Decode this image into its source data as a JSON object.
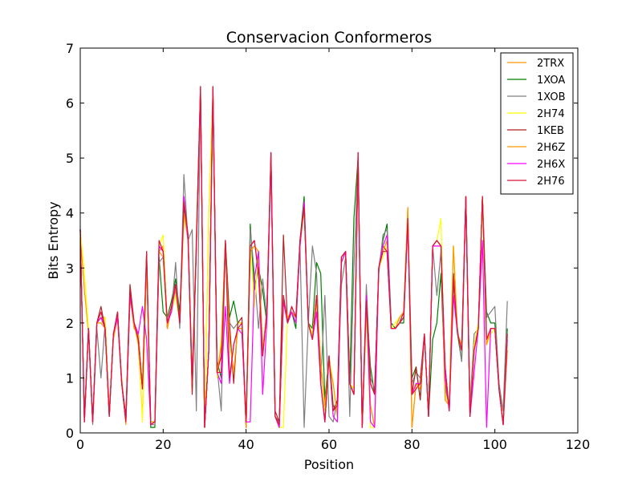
{
  "chart_data": {
    "type": "line",
    "title": "Conservacion Conformeros",
    "xlabel": "Position",
    "ylabel": "Bits Entropy",
    "xlim": [
      0,
      120
    ],
    "ylim": [
      0,
      7
    ],
    "xticks": [
      "0",
      "20",
      "40",
      "60",
      "80",
      "100",
      "120"
    ],
    "yticks": [
      "0",
      "1",
      "2",
      "3",
      "4",
      "5",
      "6",
      "7"
    ],
    "grid": false,
    "legend_position": "top-right",
    "x": [
      0,
      1,
      2,
      3,
      4,
      5,
      6,
      7,
      8,
      9,
      10,
      11,
      12,
      13,
      14,
      15,
      16,
      17,
      18,
      19,
      20,
      21,
      22,
      23,
      24,
      25,
      26,
      27,
      28,
      29,
      30,
      31,
      32,
      33,
      34,
      35,
      36,
      37,
      38,
      39,
      40,
      41,
      42,
      43,
      44,
      45,
      46,
      47,
      48,
      49,
      50,
      51,
      52,
      53,
      54,
      55,
      56,
      57,
      58,
      59,
      60,
      61,
      62,
      63,
      64,
      65,
      66,
      67,
      68,
      69,
      70,
      71,
      72,
      73,
      74,
      75,
      76,
      77,
      78,
      79,
      80,
      81,
      82,
      83,
      84,
      85,
      86,
      87,
      88,
      89,
      90,
      91,
      92,
      93,
      94,
      95,
      96,
      97,
      98,
      99,
      100,
      101,
      102,
      103
    ],
    "series": [
      {
        "name": "2TRX",
        "color": "#ff9900",
        "values": [
          3.6,
          2.6,
          1.8,
          0.2,
          2.0,
          2.1,
          2.1,
          0.4,
          1.7,
          2.1,
          1.0,
          0.15,
          2.6,
          2.0,
          1.6,
          0.3,
          3.1,
          0.2,
          0.2,
          3.3,
          3.4,
          1.9,
          2.3,
          2.6,
          2.1,
          3.9,
          3.6,
          0.9,
          3.6,
          6.2,
          0.1,
          4.0,
          6.2,
          1.1,
          1.6,
          3.4,
          1.8,
          1.1,
          1.9,
          1.9,
          0.1,
          3.3,
          3.4,
          3.3,
          1.5,
          2.2,
          5.0,
          0.3,
          0.1,
          2.4,
          2.1,
          2.2,
          2.1,
          3.4,
          4.1,
          2.0,
          1.7,
          2.5,
          1.3,
          0.5,
          1.3,
          0.9,
          0.3,
          3.1,
          3.3,
          0.9,
          0.7,
          5.0,
          0.1,
          2.3,
          0.5,
          0.1,
          3.0,
          3.3,
          3.5,
          1.9,
          1.9,
          2.1,
          2.2,
          4.1,
          0.1,
          0.9,
          0.8,
          1.8,
          0.3,
          3.4,
          3.5,
          3.4,
          0.6,
          0.5,
          3.4,
          1.8,
          1.6,
          4.3,
          0.3,
          1.5,
          1.9,
          4.3,
          1.6,
          1.9,
          1.9,
          0.8,
          0.15,
          1.5
        ]
      },
      {
        "name": "1XOA",
        "color": "#008000",
        "values": [
          3.7,
          0.3,
          1.9,
          0.2,
          2.0,
          2.1,
          1.9,
          0.3,
          1.8,
          2.1,
          0.9,
          0.3,
          2.5,
          1.9,
          1.8,
          0.8,
          3.3,
          0.1,
          0.1,
          3.2,
          2.2,
          2.1,
          2.4,
          2.8,
          2.2,
          4.1,
          3.5,
          0.8,
          3.4,
          6.1,
          0.1,
          1.5,
          6.1,
          1.3,
          1.0,
          3.5,
          2.1,
          2.4,
          2.0,
          2.0,
          0.1,
          3.8,
          2.6,
          3.0,
          2.6,
          2.0,
          5.0,
          0.3,
          0.2,
          2.5,
          2.0,
          2.2,
          1.9,
          3.5,
          4.3,
          2.0,
          1.9,
          3.1,
          2.9,
          0.6,
          1.4,
          0.5,
          0.4,
          3.2,
          3.3,
          0.9,
          3.9,
          5.0,
          0.1,
          2.4,
          1.2,
          0.7,
          3.0,
          3.5,
          3.8,
          2.0,
          1.9,
          2.0,
          2.0,
          3.9,
          1.0,
          1.2,
          0.6,
          1.8,
          0.3,
          1.7,
          2.0,
          2.9,
          0.9,
          0.5,
          2.9,
          1.8,
          1.3,
          4.3,
          0.5,
          1.5,
          1.9,
          4.3,
          2.2,
          2.0,
          2.0,
          0.9,
          0.15,
          1.9
        ]
      },
      {
        "name": "1XOB",
        "color": "#808080",
        "values": [
          3.7,
          0.2,
          1.9,
          0.15,
          1.9,
          1.0,
          2.0,
          0.3,
          1.8,
          2.1,
          0.9,
          0.2,
          2.5,
          1.9,
          1.8,
          0.8,
          3.1,
          0.15,
          0.15,
          3.1,
          3.2,
          2.0,
          2.2,
          3.1,
          1.9,
          4.7,
          3.5,
          3.7,
          0.4,
          6.2,
          0.1,
          1.5,
          6.2,
          1.2,
          0.4,
          3.4,
          2.0,
          1.9,
          2.0,
          2.0,
          0.1,
          3.7,
          2.9,
          1.9,
          2.8,
          2.1,
          5.0,
          0.3,
          0.2,
          2.4,
          2.0,
          2.2,
          2.0,
          3.4,
          0.1,
          2.0,
          3.4,
          2.9,
          0.9,
          2.5,
          0.3,
          0.2,
          0.6,
          2.7,
          3.2,
          0.3,
          3.0,
          4.9,
          0.1,
          2.7,
          1.0,
          0.8,
          2.9,
          3.6,
          3.7,
          1.9,
          1.9,
          2.0,
          2.1,
          3.8,
          0.9,
          1.1,
          1.0,
          1.8,
          0.3,
          3.4,
          2.5,
          3.3,
          0.8,
          0.5,
          2.7,
          1.9,
          1.3,
          4.3,
          0.5,
          1.8,
          1.9,
          4.3,
          2.1,
          2.2,
          2.3,
          0.9,
          0.4,
          2.4
        ]
      },
      {
        "name": "2H74",
        "color": "#ffff00",
        "values": [
          3.7,
          2.9,
          1.9,
          0.2,
          2.0,
          2.0,
          2.1,
          0.3,
          1.8,
          2.1,
          0.9,
          0.2,
          2.5,
          2.0,
          1.8,
          0.2,
          3.2,
          0.2,
          0.2,
          3.4,
          3.6,
          2.0,
          2.2,
          2.5,
          2.0,
          3.9,
          3.6,
          1.1,
          3.4,
          6.2,
          0.1,
          4.0,
          6.1,
          1.0,
          1.7,
          3.5,
          1.7,
          1.0,
          2.0,
          2.0,
          0.2,
          3.4,
          2.3,
          3.3,
          1.4,
          2.2,
          5.0,
          0.3,
          0.1,
          0.1,
          2.1,
          2.2,
          2.1,
          3.4,
          4.1,
          2.0,
          1.8,
          2.5,
          1.3,
          0.4,
          1.4,
          0.9,
          0.3,
          3.1,
          3.3,
          0.9,
          0.8,
          5.0,
          0.1,
          2.2,
          0.1,
          0.1,
          3.0,
          3.2,
          3.4,
          1.9,
          2.0,
          2.1,
          2.2,
          4.0,
          0.7,
          0.9,
          0.9,
          1.8,
          0.3,
          3.4,
          3.5,
          3.9,
          0.7,
          0.5,
          3.4,
          1.8,
          1.5,
          4.3,
          0.3,
          1.6,
          2.0,
          4.2,
          1.6,
          1.8,
          1.9,
          0.8,
          0.2,
          1.6
        ]
      },
      {
        "name": "1KEB",
        "color": "#b22222",
        "values": [
          3.7,
          0.2,
          1.9,
          0.2,
          2.0,
          2.3,
          1.9,
          0.3,
          1.8,
          2.2,
          0.9,
          0.3,
          2.7,
          2.0,
          1.7,
          0.8,
          3.2,
          0.15,
          0.2,
          3.4,
          3.3,
          1.9,
          2.3,
          2.7,
          2.0,
          4.2,
          3.6,
          0.7,
          3.4,
          6.3,
          0.1,
          1.5,
          6.3,
          1.1,
          1.4,
          3.5,
          2.0,
          0.9,
          2.0,
          2.1,
          0.1,
          3.4,
          3.5,
          2.9,
          1.4,
          2.2,
          5.1,
          0.4,
          0.2,
          3.6,
          2.0,
          2.3,
          2.1,
          3.5,
          4.1,
          2.0,
          1.7,
          2.5,
          0.9,
          0.2,
          1.4,
          0.4,
          0.6,
          3.2,
          3.3,
          0.9,
          0.7,
          5.1,
          0.1,
          2.4,
          0.9,
          0.7,
          3.0,
          3.4,
          3.3,
          1.9,
          1.9,
          2.0,
          2.2,
          3.9,
          0.7,
          1.2,
          0.6,
          1.8,
          0.3,
          3.4,
          3.5,
          3.4,
          1.2,
          0.4,
          2.9,
          1.8,
          1.5,
          4.3,
          0.3,
          1.5,
          1.9,
          4.3,
          1.7,
          1.9,
          1.9,
          0.8,
          0.15,
          1.8
        ]
      },
      {
        "name": "2H6Z",
        "color": "#ff9900",
        "values": [
          3.7,
          0.2,
          1.9,
          0.2,
          2.0,
          2.0,
          1.9,
          0.3,
          1.8,
          2.1,
          0.9,
          0.2,
          2.5,
          1.9,
          1.8,
          0.8,
          3.1,
          0.2,
          0.2,
          3.3,
          3.2,
          1.9,
          2.3,
          2.6,
          2.0,
          4.0,
          3.5,
          0.9,
          3.4,
          6.2,
          0.1,
          1.5,
          6.1,
          1.1,
          1.6,
          3.4,
          1.7,
          1.1,
          1.9,
          1.9,
          0.1,
          3.3,
          3.4,
          3.3,
          1.5,
          2.2,
          5.0,
          0.3,
          0.1,
          2.4,
          2.1,
          2.2,
          2.1,
          3.4,
          4.1,
          2.0,
          1.7,
          2.4,
          1.3,
          0.5,
          1.3,
          0.9,
          0.3,
          3.1,
          3.3,
          0.9,
          0.7,
          5.0,
          0.1,
          2.3,
          0.5,
          0.1,
          3.0,
          3.3,
          3.5,
          1.9,
          1.9,
          2.1,
          2.2,
          4.1,
          0.1,
          0.9,
          0.8,
          1.8,
          0.3,
          3.4,
          3.5,
          3.4,
          0.6,
          0.5,
          3.4,
          1.8,
          1.6,
          4.3,
          0.3,
          1.5,
          1.9,
          4.3,
          1.6,
          1.9,
          1.9,
          0.8,
          0.15,
          1.5
        ]
      },
      {
        "name": "2H6X",
        "color": "#ff00ff",
        "values": [
          3.7,
          0.2,
          1.9,
          0.2,
          2.0,
          2.1,
          1.9,
          0.3,
          1.8,
          2.1,
          0.9,
          0.2,
          2.5,
          2.0,
          1.8,
          2.3,
          1.7,
          0.15,
          0.2,
          3.4,
          3.3,
          2.0,
          2.2,
          2.7,
          2.0,
          4.3,
          3.5,
          1.0,
          3.3,
          6.2,
          0.1,
          1.5,
          6.2,
          1.1,
          0.9,
          2.3,
          0.9,
          1.6,
          1.9,
          1.8,
          0.2,
          0.2,
          2.8,
          3.3,
          0.7,
          2.0,
          5.0,
          0.3,
          0.1,
          2.4,
          2.0,
          2.2,
          2.0,
          3.4,
          4.2,
          2.0,
          1.7,
          2.2,
          0.9,
          0.2,
          1.4,
          0.3,
          0.2,
          3.1,
          3.3,
          0.9,
          0.7,
          5.0,
          0.1,
          2.5,
          0.2,
          0.1,
          3.0,
          3.4,
          3.6,
          1.9,
          1.9,
          2.0,
          2.1,
          3.8,
          0.7,
          0.9,
          0.9,
          1.8,
          0.3,
          3.4,
          3.4,
          3.4,
          1.0,
          0.4,
          2.5,
          1.8,
          1.5,
          4.3,
          0.3,
          1.1,
          1.9,
          3.5,
          0.1,
          1.9,
          1.9,
          0.8,
          0.15,
          1.7
        ]
      },
      {
        "name": "2H76",
        "color": "#dc143c",
        "values": [
          3.7,
          0.2,
          1.9,
          0.2,
          2.0,
          2.2,
          1.9,
          0.3,
          1.8,
          2.2,
          0.9,
          0.2,
          2.6,
          2.0,
          1.7,
          0.8,
          3.3,
          0.15,
          0.2,
          3.5,
          3.3,
          2.0,
          2.3,
          2.7,
          2.0,
          4.2,
          3.6,
          0.9,
          3.4,
          6.3,
          0.1,
          1.5,
          6.3,
          1.1,
          1.1,
          3.5,
          1.0,
          1.6,
          1.9,
          2.0,
          0.2,
          3.4,
          3.5,
          2.9,
          1.4,
          2.2,
          5.1,
          0.3,
          0.15,
          2.5,
          2.0,
          2.3,
          2.1,
          3.5,
          4.1,
          2.0,
          1.7,
          2.5,
          0.9,
          0.2,
          1.4,
          0.4,
          0.5,
          3.2,
          3.3,
          0.9,
          0.7,
          5.1,
          0.1,
          2.4,
          0.9,
          0.7,
          3.0,
          3.3,
          3.3,
          1.9,
          1.9,
          2.0,
          2.1,
          3.9,
          0.7,
          0.8,
          0.9,
          1.8,
          0.3,
          3.4,
          3.5,
          3.4,
          1.2,
          0.4,
          2.8,
          1.8,
          1.5,
          4.3,
          0.3,
          1.5,
          1.9,
          4.3,
          1.7,
          1.9,
          1.9,
          0.8,
          0.15,
          1.8
        ]
      }
    ]
  }
}
